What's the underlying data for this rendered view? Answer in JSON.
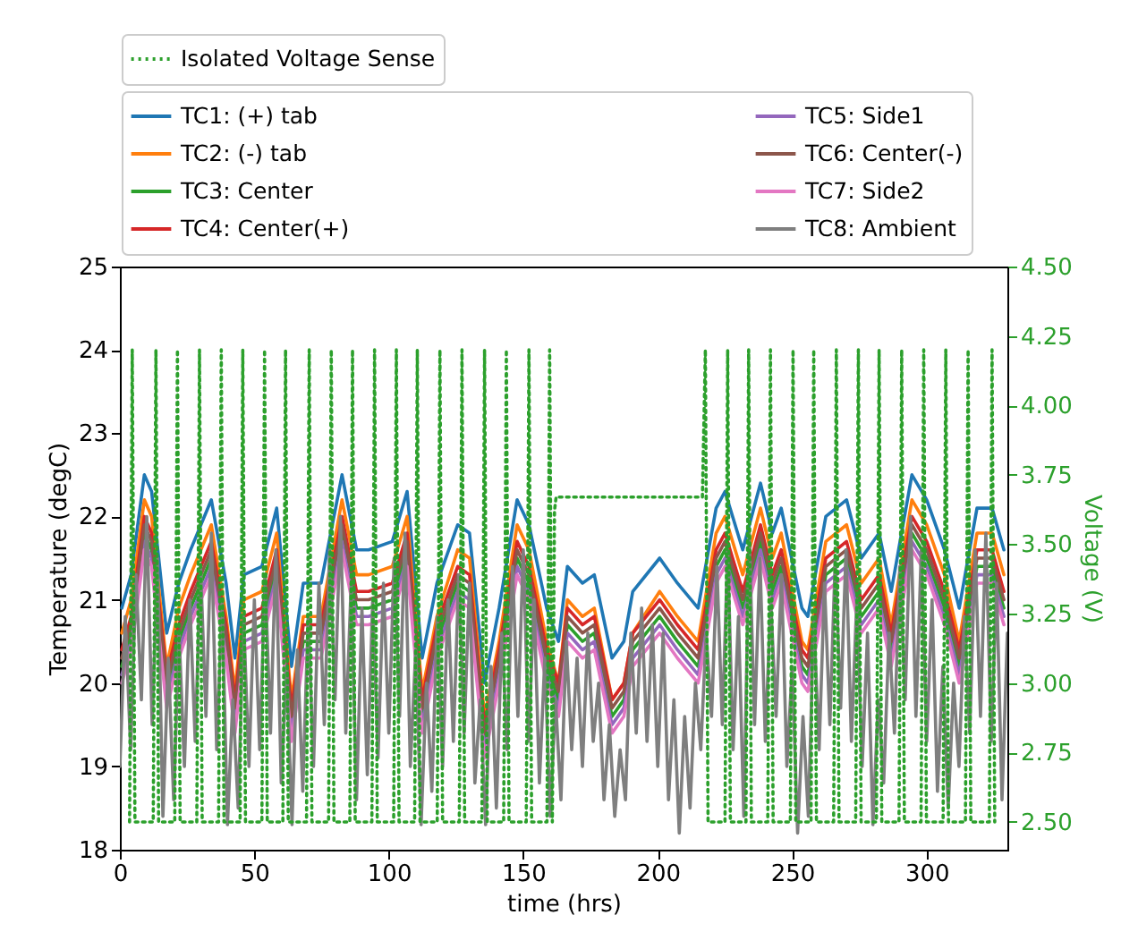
{
  "chart_data": {
    "type": "line",
    "xlabel": "time (hrs)",
    "ylabel": "Temperature (degC)",
    "y2label": "Voltage (V)",
    "x": [
      0.7,
      4.2,
      9.1,
      11.8,
      17.4,
      21.9,
      26.3,
      34,
      39.5,
      42.8,
      46.1,
      52.8,
      58.3,
      63.8,
      68.2,
      74.8,
      82.6,
      88,
      92.5,
      101.3,
      106.8,
      112.4,
      117.9,
      125.6,
      130,
      135.6,
      141,
      147.7,
      152.1,
      158.7,
      163.1,
      166.4,
      172,
      176.4,
      183,
      187.4,
      190.7,
      200.7,
      207.3,
      215,
      221.7,
      225,
      231.6,
      238.2,
      242.6,
      245.9,
      253.6,
      255.8,
      262.5,
      270.2,
      275.7,
      282.3,
      286.8,
      294.5,
      300,
      306.6,
      312.1,
      318.7,
      324.3,
      328.7
    ],
    "xlim": [
      0,
      330
    ],
    "xticks": [
      0,
      50,
      100,
      150,
      200,
      250,
      300
    ],
    "ylim": [
      18,
      25
    ],
    "yticks": [
      18,
      19,
      20,
      21,
      22,
      23,
      24,
      25
    ],
    "y2lim": [
      2.4,
      4.5
    ],
    "y2ticks": [
      {
        "value": 2.5,
        "label": "2.50"
      },
      {
        "value": 2.75,
        "label": "2.75"
      },
      {
        "value": 3,
        "label": "3.00"
      },
      {
        "value": 3.25,
        "label": "3.25"
      },
      {
        "value": 3.5,
        "label": "3.50"
      },
      {
        "value": 3.75,
        "label": "3.75"
      },
      {
        "value": 4,
        "label": "4.00"
      },
      {
        "value": 4.25,
        "label": "4.25"
      },
      {
        "value": 4.5,
        "label": "4.50"
      }
    ],
    "legend": "top",
    "line_style": "solid",
    "series": [
      {
        "name": "TC1: (+) tab",
        "color": "#1f77b4",
        "values": [
          20.9,
          21.3,
          22.5,
          22.3,
          20.6,
          21.2,
          21.6,
          22.2,
          21.2,
          20.3,
          21.3,
          21.4,
          22.1,
          20.2,
          21.2,
          21.2,
          22.5,
          21.6,
          21.6,
          21.7,
          22.3,
          20.3,
          21.2,
          21.9,
          21.8,
          20.0,
          20.9,
          22.2,
          21.9,
          20.9,
          20.5,
          21.4,
          21.2,
          21.3,
          20.3,
          20.5,
          21.1,
          21.5,
          21.2,
          20.9,
          22.1,
          22.3,
          21.6,
          22.4,
          21.8,
          22.1,
          20.9,
          20.8,
          22.0,
          22.2,
          21.5,
          21.8,
          21.1,
          22.5,
          22.2,
          21.6,
          20.9,
          22.1,
          22.1,
          21.6
        ]
      },
      {
        "name": "TC2: (-) tab",
        "color": "#ff7f0e",
        "values": [
          20.6,
          21.0,
          22.2,
          22.0,
          20.2,
          20.9,
          21.3,
          21.9,
          20.8,
          19.9,
          21.0,
          21.1,
          21.8,
          19.8,
          20.8,
          20.8,
          22.2,
          21.3,
          21.3,
          21.4,
          22.0,
          19.9,
          20.8,
          21.6,
          21.5,
          19.6,
          20.5,
          21.9,
          21.6,
          20.5,
          20.0,
          21.0,
          20.8,
          20.9,
          19.8,
          20.0,
          20.6,
          21.1,
          20.8,
          20.5,
          21.8,
          22.0,
          21.3,
          22.1,
          21.5,
          21.8,
          20.5,
          20.4,
          21.7,
          21.9,
          21.2,
          21.5,
          20.7,
          22.2,
          21.9,
          21.3,
          20.5,
          21.8,
          21.8,
          21.3
        ]
      },
      {
        "name": "TC3: Center",
        "color": "#2ca02c",
        "values": [
          20.2,
          20.6,
          21.8,
          21.6,
          19.9,
          20.5,
          20.9,
          21.5,
          20.5,
          19.6,
          20.6,
          20.7,
          21.4,
          19.5,
          20.5,
          20.5,
          21.8,
          20.9,
          20.9,
          21.0,
          21.6,
          19.6,
          20.5,
          21.2,
          21.1,
          19.3,
          20.2,
          21.5,
          21.2,
          20.2,
          19.8,
          20.7,
          20.5,
          20.6,
          19.6,
          19.8,
          20.4,
          20.8,
          20.5,
          20.2,
          21.4,
          21.6,
          20.9,
          21.7,
          21.1,
          21.4,
          20.2,
          20.1,
          21.3,
          21.5,
          20.8,
          21.1,
          20.4,
          21.8,
          21.5,
          20.9,
          20.2,
          21.4,
          21.4,
          20.9
        ]
      },
      {
        "name": "TC4: Center(+)",
        "color": "#d62728",
        "values": [
          20.4,
          20.8,
          22.0,
          21.8,
          20.1,
          20.7,
          21.1,
          21.7,
          20.7,
          19.8,
          20.8,
          20.9,
          21.6,
          19.7,
          20.7,
          20.7,
          22.0,
          21.1,
          21.1,
          21.2,
          21.8,
          19.8,
          20.7,
          21.4,
          21.3,
          19.5,
          20.4,
          21.7,
          21.4,
          20.4,
          20.0,
          20.9,
          20.7,
          20.8,
          19.8,
          20.0,
          20.6,
          21.0,
          20.7,
          20.4,
          21.6,
          21.8,
          21.1,
          21.9,
          21.3,
          21.6,
          20.4,
          20.3,
          21.5,
          21.7,
          21.0,
          21.3,
          20.6,
          22.0,
          21.7,
          21.1,
          20.4,
          21.6,
          21.6,
          21.1
        ]
      },
      {
        "name": "TC5: Side1",
        "color": "#9467bd",
        "values": [
          20.1,
          20.5,
          21.7,
          21.5,
          19.8,
          20.4,
          20.8,
          21.4,
          20.4,
          19.5,
          20.5,
          20.6,
          21.3,
          19.4,
          20.4,
          20.4,
          21.7,
          20.8,
          20.8,
          20.9,
          21.5,
          19.5,
          20.4,
          21.1,
          21.0,
          19.2,
          20.1,
          21.4,
          21.1,
          20.1,
          19.7,
          20.6,
          20.4,
          20.5,
          19.5,
          19.7,
          20.3,
          20.7,
          20.4,
          20.1,
          21.3,
          21.5,
          20.8,
          21.6,
          21.0,
          21.3,
          20.1,
          20.0,
          21.2,
          21.4,
          20.7,
          21.0,
          20.3,
          21.7,
          21.4,
          20.8,
          20.1,
          21.3,
          21.3,
          20.8
        ]
      },
      {
        "name": "TC6: Center(-)",
        "color": "#8c564b",
        "values": [
          20.3,
          20.7,
          21.9,
          21.7,
          20.0,
          20.6,
          21.0,
          21.6,
          20.6,
          19.7,
          20.7,
          20.8,
          21.5,
          19.6,
          20.6,
          20.6,
          21.9,
          21.0,
          21.0,
          21.1,
          21.7,
          19.7,
          20.6,
          21.3,
          21.2,
          19.4,
          20.3,
          21.6,
          21.3,
          20.3,
          19.9,
          20.8,
          20.6,
          20.7,
          19.7,
          19.9,
          20.5,
          20.9,
          20.6,
          20.3,
          21.5,
          21.7,
          21.0,
          21.8,
          21.2,
          21.5,
          20.3,
          20.2,
          21.4,
          21.6,
          20.9,
          21.2,
          20.5,
          21.9,
          21.6,
          21.0,
          20.3,
          21.5,
          21.5,
          21.0
        ]
      },
      {
        "name": "TC7: Side2",
        "color": "#e377c2",
        "values": [
          20.0,
          20.4,
          21.6,
          21.4,
          19.7,
          20.3,
          20.7,
          21.3,
          20.3,
          19.4,
          20.4,
          20.5,
          21.2,
          19.3,
          20.3,
          20.3,
          21.6,
          20.7,
          20.7,
          20.8,
          21.4,
          19.4,
          20.3,
          21.0,
          20.9,
          19.1,
          20.0,
          21.3,
          21.0,
          20.0,
          19.6,
          20.5,
          20.3,
          20.4,
          19.4,
          19.6,
          20.2,
          20.6,
          20.3,
          20.0,
          21.2,
          21.4,
          20.7,
          21.5,
          20.9,
          21.2,
          20.0,
          19.9,
          21.1,
          21.3,
          20.6,
          20.9,
          20.2,
          21.6,
          21.3,
          20.7,
          20.0,
          21.2,
          21.2,
          20.7
        ]
      },
      {
        "name": "TC8: Ambient",
        "color": "#7f7f7f",
        "x": [
          0,
          2,
          4,
          6,
          8,
          10,
          12,
          14,
          16,
          18,
          20,
          22,
          24,
          26,
          28,
          30,
          32,
          34,
          36,
          38,
          40,
          42,
          44,
          46,
          48,
          50,
          52,
          54,
          56,
          58,
          60,
          62,
          64,
          66,
          68,
          70,
          72,
          74,
          76,
          78,
          80,
          82,
          84,
          86,
          88,
          90,
          92,
          94,
          96,
          98,
          100,
          102,
          104,
          106,
          108,
          110,
          112,
          114,
          116,
          118,
          120,
          122,
          124,
          126,
          128,
          130,
          132,
          134,
          136,
          138,
          140,
          142,
          144,
          146,
          148,
          150,
          152,
          154,
          156,
          158,
          160,
          162,
          164,
          166,
          168,
          170,
          172,
          174,
          176,
          178,
          180,
          182,
          184,
          186,
          188,
          190,
          192,
          194,
          196,
          198,
          200,
          202,
          204,
          206,
          208,
          210,
          212,
          214,
          216,
          218,
          220,
          222,
          224,
          226,
          228,
          230,
          232,
          234,
          236,
          238,
          240,
          242,
          244,
          246,
          248,
          250,
          252,
          254,
          256,
          258,
          260,
          262,
          264,
          266,
          268,
          270,
          272,
          274,
          276,
          278,
          280,
          282,
          284,
          286,
          288,
          290,
          292,
          294,
          296,
          298,
          300,
          302,
          304,
          306,
          308,
          310,
          312,
          314,
          316,
          318,
          320,
          322,
          324,
          326,
          328,
          330
        ],
        "values": [
          19.0,
          20.8,
          19.2,
          21.3,
          19.8,
          22.0,
          19.5,
          21.5,
          18.4,
          20.3,
          18.6,
          20.6,
          19.0,
          21.0,
          19.3,
          21.4,
          19.6,
          21.8,
          19.2,
          21.0,
          18.3,
          19.8,
          18.5,
          20.8,
          19.0,
          21.0,
          19.2,
          21.3,
          19.4,
          21.6,
          18.8,
          20.2,
          18.3,
          20.4,
          18.7,
          20.8,
          19.0,
          21.2,
          19.5,
          21.6,
          19.8,
          22.0,
          19.4,
          21.2,
          18.6,
          20.9,
          18.9,
          21.0,
          19.1,
          21.2,
          19.4,
          21.5,
          19.6,
          21.8,
          19.0,
          20.4,
          18.3,
          20.0,
          18.7,
          20.8,
          19.0,
          21.0,
          19.3,
          21.3,
          19.4,
          21.2,
          18.8,
          19.8,
          18.3,
          20.2,
          18.5,
          20.6,
          19.2,
          21.4,
          19.6,
          21.6,
          19.3,
          21.0,
          18.8,
          20.3,
          18.4,
          19.8,
          18.6,
          20.5,
          19.2,
          20.3,
          19.0,
          20.6,
          19.3,
          20.0,
          18.6,
          19.5,
          18.4,
          19.2,
          18.6,
          20.6,
          19.4,
          20.9,
          19.3,
          20.7,
          19.0,
          20.6,
          18.6,
          19.8,
          18.2,
          19.6,
          18.5,
          20.0,
          19.2,
          20.6,
          19.6,
          21.4,
          19.5,
          21.6,
          19.2,
          20.8,
          18.4,
          21.8,
          19.5,
          21.5,
          19.3,
          21.0,
          19.6,
          21.3,
          19.0,
          20.2,
          18.2,
          19.6,
          18.4,
          20.8,
          19.2,
          21.2,
          19.5,
          21.5,
          19.7,
          21.6,
          19.3,
          21.0,
          19.0,
          20.6,
          18.3,
          19.8,
          18.8,
          20.6,
          19.4,
          21.4,
          19.8,
          22.0,
          19.6,
          21.6,
          19.3,
          21.0,
          18.7,
          20.2,
          18.5,
          20.0,
          19.0,
          20.8,
          19.4,
          21.6,
          19.6,
          21.8,
          19.3,
          21.2,
          18.6,
          20.6
        ]
      },
      {
        "name": "Isolated Voltage Sense",
        "color": "#2ca02c",
        "axis": "y2",
        "line_style": "dotted",
        "x": [
          3.6,
          4.6,
          5.6,
          12.4,
          13.4,
          14.4,
          20.4,
          21.4,
          22.4,
          28.6,
          29.6,
          30.6,
          36.7,
          37.7,
          38.7,
          44.7,
          45.7,
          46.7,
          52.8,
          53.8,
          54.8,
          60.6,
          61.6,
          62.6,
          69.4,
          70.4,
          71.4,
          77.6,
          78.6,
          79.6,
          85.5,
          86.5,
          87.5,
          93.7,
          94.7,
          95.7,
          101.8,
          102.8,
          103.8,
          109.6,
          110.6,
          111.6,
          118,
          119,
          120,
          126.2,
          127.2,
          128.2,
          134.6,
          135.6,
          136.6,
          142.7,
          143.7,
          144.7,
          151.1,
          152.1,
          153.1,
          158.8,
          159.8,
          160.8,
          161.6,
          162.2,
          216.6,
          217.7,
          218.7,
          225,
          226,
          227,
          232.8,
          233.8,
          234.8,
          240.9,
          241.9,
          242.9,
          249.3,
          250.3,
          251.3,
          257,
          258,
          259,
          265.4,
          266.4,
          267.4,
          273.6,
          274.6,
          275.6,
          281.3,
          282.3,
          283.3,
          289.7,
          290.7,
          291.7,
          297.9,
          298.9,
          299.9,
          306.1,
          307.1,
          308.1,
          314.4,
          315.4,
          316.4,
          323.3,
          324.3,
          325.3
        ],
        "values": [
          2.5,
          4.2,
          2.5,
          2.5,
          4.2,
          2.5,
          2.5,
          4.2,
          2.5,
          2.5,
          4.2,
          2.5,
          2.5,
          4.2,
          2.5,
          2.5,
          4.2,
          2.5,
          2.5,
          4.2,
          2.5,
          2.5,
          4.2,
          2.5,
          2.5,
          4.2,
          2.5,
          2.5,
          4.2,
          2.5,
          2.5,
          4.2,
          2.5,
          2.5,
          4.2,
          2.5,
          2.5,
          4.2,
          2.5,
          2.5,
          4.2,
          2.5,
          2.5,
          4.2,
          2.5,
          2.5,
          4.2,
          2.5,
          2.5,
          4.2,
          2.5,
          2.5,
          4.2,
          2.5,
          2.5,
          4.2,
          2.5,
          2.5,
          4.2,
          2.5,
          3.62,
          3.67,
          3.67,
          4.2,
          2.5,
          2.5,
          4.2,
          2.5,
          2.5,
          4.2,
          2.5,
          2.5,
          4.2,
          2.5,
          2.5,
          4.2,
          2.5,
          2.5,
          4.2,
          2.5,
          2.5,
          4.2,
          2.5,
          2.5,
          4.2,
          2.5,
          2.5,
          4.2,
          2.5,
          2.5,
          4.2,
          2.5,
          2.5,
          4.2,
          2.5,
          2.5,
          4.2,
          2.5,
          2.5,
          4.2,
          2.5,
          2.5,
          4.2,
          2.5
        ]
      }
    ]
  }
}
